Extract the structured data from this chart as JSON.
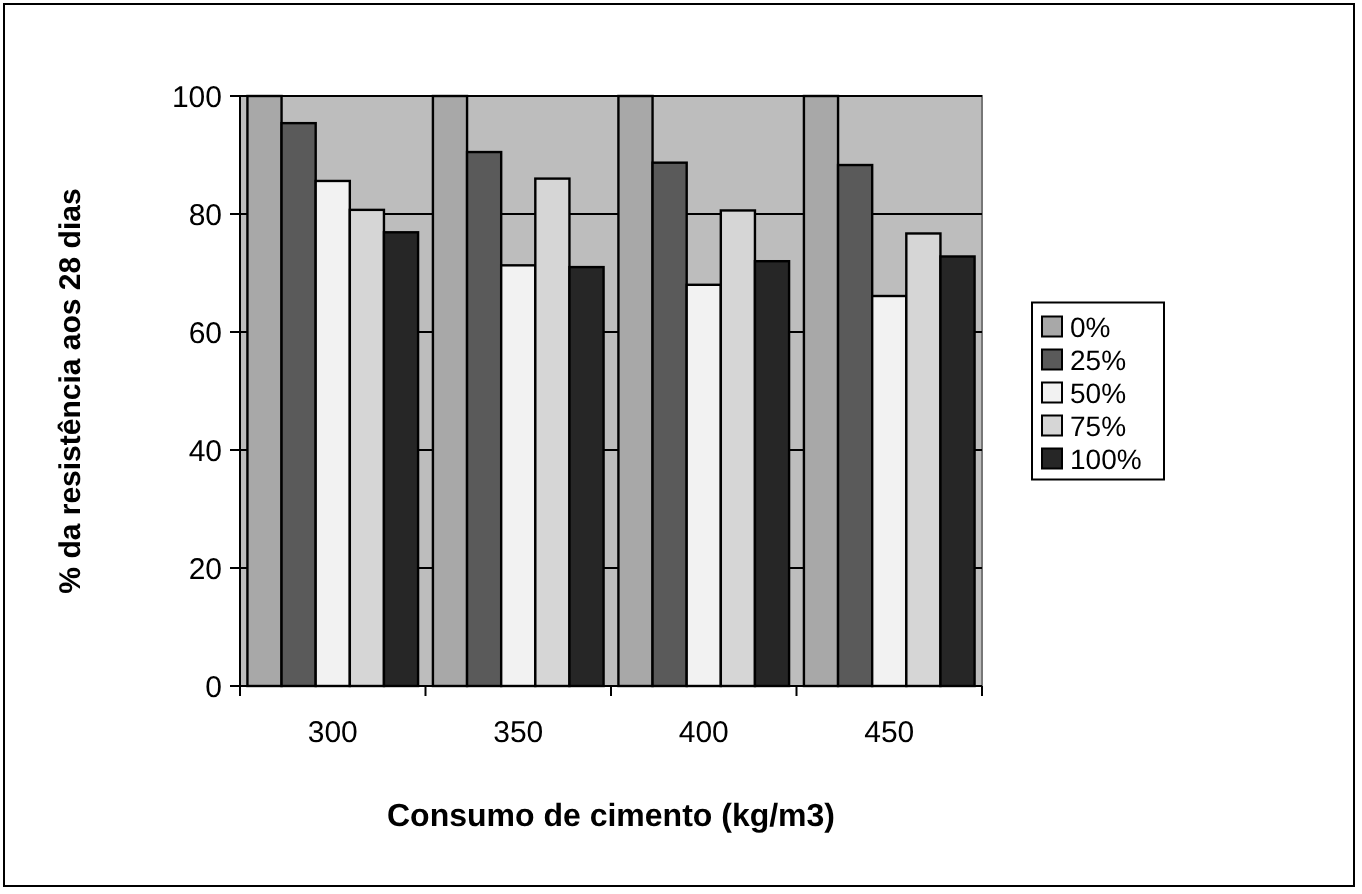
{
  "chart_data": {
    "type": "bar",
    "xlabel": "Consumo de cimento (kg/m3)",
    "ylabel": "% da resistência aos 28 dias",
    "categories": [
      "300",
      "350",
      "400",
      "450"
    ],
    "series": [
      {
        "name": "0%",
        "color": "#a8a8a8",
        "values": [
          100,
          100,
          100,
          100
        ]
      },
      {
        "name": "25%",
        "color": "#5a5a5a",
        "values": [
          95.4,
          90.5,
          88.7,
          88.3
        ]
      },
      {
        "name": "50%",
        "color": "#f2f2f2",
        "values": [
          85.6,
          71.3,
          68,
          66.1
        ]
      },
      {
        "name": "75%",
        "color": "#d6d6d6",
        "values": [
          80.7,
          86,
          80.6,
          76.7
        ]
      },
      {
        "name": "100%",
        "color": "#262626",
        "values": [
          76.9,
          71,
          72,
          72.8
        ]
      }
    ],
    "ylim": [
      0,
      100
    ],
    "yticks": [
      0,
      20,
      40,
      60,
      80,
      100
    ],
    "grid": "y",
    "legend": "right"
  }
}
